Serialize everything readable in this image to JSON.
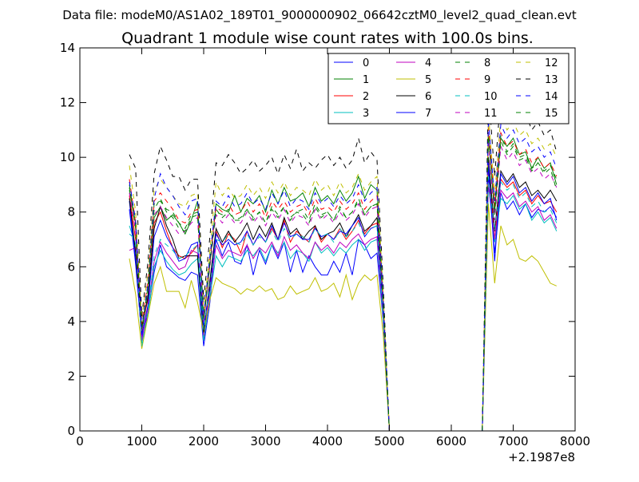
{
  "suptitle": "Data file: modeM0/AS1A02_189T01_9000000902_06642cztM0_level2_quad_clean.evt",
  "chart_data": {
    "type": "line",
    "title": "Quadrant 1 module wise count rates with 100.0s bins.",
    "xlabel": "",
    "ylabel": "",
    "x_offset_label": "+2.1987e8",
    "xlim": [
      0,
      8000
    ],
    "ylim": [
      0,
      14
    ],
    "xticks": [
      "0",
      "1000",
      "2000",
      "3000",
      "4000",
      "5000",
      "6000",
      "7000",
      "8000"
    ],
    "yticks": [
      "0",
      "2",
      "4",
      "6",
      "8",
      "10",
      "12",
      "14"
    ],
    "legend_position": "top-right",
    "x": [
      800,
      900,
      1000,
      1100,
      1200,
      1300,
      1400,
      1500,
      1600,
      1700,
      1800,
      1900,
      2000,
      2100,
      2200,
      2300,
      2400,
      2500,
      2600,
      2700,
      2800,
      2900,
      3000,
      3100,
      3200,
      3300,
      3400,
      3500,
      3600,
      3700,
      3800,
      3900,
      4000,
      4100,
      4200,
      4300,
      4400,
      4500,
      4600,
      4700,
      4800,
      4900,
      5000,
      5100,
      5200,
      5300,
      5400,
      5500,
      5600,
      5700,
      5800,
      5900,
      6000,
      6100,
      6200,
      6300,
      6400,
      6500,
      6600,
      6700,
      6800,
      6900,
      7000,
      7100,
      7200,
      7300,
      7400,
      7500,
      7600,
      7700
    ],
    "series": [
      {
        "name": "0",
        "color": "#0000ff",
        "dash": "solid",
        "values": [
          8.4,
          6.2,
          3.4,
          4.3,
          5.8,
          6.8,
          6.0,
          5.8,
          5.6,
          5.5,
          5.8,
          5.7,
          3.1,
          4.7,
          7.0,
          6.4,
          6.9,
          6.2,
          6.1,
          6.8,
          5.7,
          6.6,
          6.1,
          6.8,
          6.3,
          6.9,
          5.8,
          6.6,
          5.8,
          6.4,
          6.0,
          5.7,
          5.7,
          6.2,
          5.8,
          6.5,
          5.7,
          7.0,
          6.8,
          6.3,
          6.5,
          4.0,
          0,
          0,
          0,
          0,
          0,
          0,
          0,
          0,
          0,
          0,
          0,
          0,
          0,
          0,
          0,
          0,
          9.4,
          6.5,
          8.7,
          8.1,
          8.4,
          7.9,
          8.3,
          7.8,
          8.1,
          8.0,
          8.2,
          7.8
        ]
      },
      {
        "name": "1",
        "color": "#008000",
        "dash": "solid",
        "values": [
          8.8,
          7.6,
          3.6,
          5.0,
          7.8,
          8.2,
          7.7,
          7.9,
          7.6,
          7.2,
          7.7,
          8.4,
          4.0,
          6.1,
          8.3,
          8.1,
          8.0,
          8.6,
          8.0,
          8.5,
          8.3,
          8.6,
          8.0,
          8.8,
          8.3,
          8.9,
          8.4,
          8.5,
          8.7,
          8.2,
          8.9,
          8.4,
          8.6,
          8.3,
          8.8,
          8.4,
          8.7,
          9.3,
          8.5,
          9.0,
          8.8,
          4.6,
          0,
          0,
          0,
          0,
          0,
          0,
          0,
          0,
          0,
          0,
          0,
          0,
          0,
          0,
          0,
          0,
          10.8,
          8.0,
          10.7,
          10.4,
          10.7,
          10.1,
          10.2,
          9.6,
          10.0,
          9.6,
          9.8,
          9.0
        ]
      },
      {
        "name": "2",
        "color": "#ff0000",
        "dash": "solid",
        "values": [
          8.6,
          7.0,
          3.8,
          4.8,
          7.6,
          8.0,
          7.3,
          6.7,
          6.4,
          6.3,
          6.5,
          6.8,
          3.4,
          5.3,
          7.3,
          6.7,
          7.2,
          7.0,
          6.5,
          7.3,
          6.8,
          7.2,
          6.9,
          7.4,
          7.0,
          7.7,
          6.9,
          7.3,
          7.1,
          6.9,
          7.5,
          6.9,
          7.2,
          7.0,
          7.4,
          7.0,
          7.3,
          7.7,
          7.2,
          7.5,
          7.6,
          4.2,
          0,
          0,
          0,
          0,
          0,
          0,
          0,
          0,
          0,
          0,
          0,
          0,
          0,
          0,
          0,
          0,
          9.7,
          7.0,
          9.2,
          8.9,
          9.1,
          8.6,
          8.8,
          8.3,
          8.6,
          8.3,
          8.4,
          8.0
        ]
      },
      {
        "name": "3",
        "color": "#00bfbf",
        "dash": "solid",
        "values": [
          7.5,
          6.8,
          3.2,
          4.2,
          6.0,
          6.6,
          6.2,
          5.9,
          5.7,
          5.8,
          6.1,
          6.3,
          3.3,
          4.9,
          6.4,
          6.0,
          6.4,
          6.3,
          6.2,
          6.6,
          6.4,
          6.7,
          6.2,
          6.8,
          6.5,
          6.9,
          6.3,
          6.6,
          6.5,
          6.2,
          6.9,
          6.5,
          6.7,
          6.4,
          6.7,
          6.5,
          6.8,
          7.0,
          6.6,
          6.9,
          7.0,
          4.0,
          0,
          0,
          0,
          0,
          0,
          0,
          0,
          0,
          0,
          0,
          0,
          0,
          0,
          0,
          0,
          0,
          9.0,
          6.9,
          8.5,
          8.3,
          8.6,
          8.1,
          8.3,
          7.7,
          8.0,
          7.6,
          7.8,
          7.3
        ]
      },
      {
        "name": "4",
        "color": "#bf00bf",
        "dash": "solid",
        "values": [
          6.6,
          6.7,
          3.3,
          4.5,
          6.2,
          6.9,
          6.5,
          6.2,
          5.9,
          6.0,
          6.6,
          6.5,
          3.5,
          5.1,
          6.8,
          6.3,
          6.6,
          6.5,
          6.4,
          6.8,
          6.3,
          6.7,
          6.5,
          6.9,
          6.4,
          7.1,
          6.6,
          6.8,
          6.5,
          6.3,
          6.9,
          6.6,
          6.8,
          6.5,
          6.9,
          6.7,
          7.0,
          7.2,
          6.8,
          7.0,
          7.1,
          4.1,
          0,
          0,
          0,
          0,
          0,
          0,
          0,
          0,
          0,
          0,
          0,
          0,
          0,
          0,
          0,
          0,
          9.1,
          7.0,
          8.8,
          8.5,
          8.7,
          8.2,
          8.4,
          8.0,
          8.2,
          7.7,
          7.9,
          7.4
        ]
      },
      {
        "name": "5",
        "color": "#bfbf00",
        "dash": "solid",
        "values": [
          6.3,
          5.0,
          3.0,
          4.2,
          5.4,
          6.0,
          5.1,
          5.1,
          5.1,
          4.5,
          5.5,
          4.7,
          3.6,
          4.8,
          5.6,
          5.4,
          5.3,
          5.2,
          5.0,
          5.2,
          5.1,
          5.3,
          5.1,
          5.2,
          4.8,
          4.9,
          5.3,
          5.0,
          5.1,
          5.2,
          5.6,
          5.1,
          5.2,
          5.4,
          4.9,
          5.7,
          4.8,
          5.4,
          5.7,
          5.5,
          5.7,
          3.5,
          0,
          0,
          0,
          0,
          0,
          0,
          0,
          0,
          0,
          0,
          0,
          0,
          0,
          0,
          0,
          0,
          8.3,
          5.4,
          7.5,
          6.8,
          7.0,
          6.3,
          6.2,
          6.4,
          6.2,
          5.8,
          5.4,
          5.3
        ]
      },
      {
        "name": "6",
        "color": "#000000",
        "dash": "solid",
        "values": [
          8.5,
          6.5,
          3.8,
          4.9,
          7.4,
          8.2,
          7.5,
          7.0,
          6.3,
          6.4,
          6.4,
          6.4,
          3.6,
          5.5,
          7.4,
          6.9,
          7.3,
          6.9,
          7.2,
          7.6,
          7.0,
          7.5,
          7.1,
          7.6,
          7.0,
          7.8,
          7.2,
          7.4,
          7.0,
          7.3,
          7.5,
          7.0,
          7.2,
          7.3,
          7.6,
          7.1,
          7.5,
          7.9,
          7.3,
          7.5,
          7.8,
          4.4,
          0,
          0,
          0,
          0,
          0,
          0,
          0,
          0,
          0,
          0,
          0,
          0,
          0,
          0,
          0,
          0,
          10.0,
          7.3,
          9.5,
          9.1,
          9.4,
          8.9,
          9.1,
          8.6,
          8.8,
          8.5,
          8.8,
          8.4
        ]
      },
      {
        "name": "7",
        "color": "#0000ff",
        "dash": "solid",
        "values": [
          8.1,
          6.1,
          3.5,
          4.6,
          7.1,
          7.7,
          7.1,
          6.7,
          6.2,
          6.3,
          6.8,
          6.9,
          3.8,
          5.2,
          7.2,
          6.8,
          7.0,
          6.8,
          6.9,
          7.3,
          6.8,
          7.2,
          6.9,
          7.5,
          7.0,
          7.6,
          7.1,
          7.2,
          7.0,
          7.0,
          7.4,
          7.1,
          7.2,
          7.0,
          7.3,
          7.2,
          7.5,
          7.8,
          7.1,
          7.4,
          7.5,
          4.3,
          0,
          0,
          0,
          0,
          0,
          0,
          0,
          0,
          0,
          0,
          0,
          0,
          0,
          0,
          0,
          0,
          9.8,
          6.2,
          9.4,
          9.0,
          9.3,
          8.7,
          8.9,
          8.4,
          8.7,
          8.3,
          8.5,
          7.7
        ]
      },
      {
        "name": "8",
        "color": "#008000",
        "dash": "dashed",
        "values": [
          9.0,
          7.5,
          3.7,
          5.3,
          8.3,
          8.4,
          8.1,
          8.0,
          7.6,
          7.4,
          7.9,
          8.0,
          4.1,
          6.2,
          8.0,
          7.9,
          8.1,
          7.7,
          7.8,
          8.1,
          7.8,
          8.0,
          7.6,
          8.2,
          7.9,
          8.2,
          7.8,
          8.0,
          8.1,
          7.7,
          8.3,
          7.9,
          8.0,
          7.7,
          8.2,
          7.8,
          8.0,
          8.4,
          7.9,
          8.2,
          8.3,
          4.6,
          0,
          0,
          0,
          0,
          0,
          0,
          0,
          0,
          0,
          0,
          0,
          0,
          0,
          0,
          0,
          0,
          10.9,
          8.1,
          10.8,
          10.2,
          10.5,
          10.0,
          10.1,
          9.6,
          9.8,
          9.5,
          9.7,
          9.2
        ]
      },
      {
        "name": "9",
        "color": "#ff0000",
        "dash": "dashed",
        "values": [
          9.2,
          7.6,
          3.9,
          5.5,
          8.4,
          8.7,
          8.4,
          8.1,
          7.7,
          7.6,
          8.0,
          8.1,
          4.1,
          6.3,
          8.2,
          8.0,
          8.3,
          7.9,
          8.0,
          8.4,
          8.0,
          8.3,
          7.8,
          8.4,
          8.1,
          8.4,
          8.0,
          8.2,
          8.3,
          7.9,
          8.5,
          8.1,
          8.2,
          8.0,
          8.4,
          8.1,
          8.3,
          8.7,
          8.1,
          8.4,
          8.6,
          4.7,
          0,
          0,
          0,
          0,
          0,
          0,
          0,
          0,
          0,
          0,
          0,
          0,
          0,
          0,
          0,
          0,
          11.1,
          8.2,
          10.9,
          10.4,
          10.6,
          10.1,
          10.3,
          9.8,
          10.0,
          9.6,
          9.8,
          9.3
        ]
      },
      {
        "name": "10",
        "color": "#00bfbf",
        "dash": "dashed",
        "values": [
          7.2,
          7.0,
          3.1,
          4.4,
          6.4,
          7.0,
          6.8,
          6.6,
          6.3,
          6.4,
          6.6,
          6.8,
          3.7,
          5.3,
          7.0,
          6.9,
          7.2,
          6.9,
          6.8,
          7.2,
          6.8,
          7.1,
          6.9,
          7.3,
          6.9,
          7.4,
          7.0,
          7.2,
          7.1,
          6.9,
          7.4,
          7.1,
          7.2,
          6.9,
          7.4,
          7.1,
          7.3,
          7.6,
          7.1,
          7.4,
          7.5,
          4.1,
          0,
          0,
          0,
          0,
          0,
          0,
          0,
          0,
          0,
          0,
          0,
          0,
          0,
          0,
          0,
          0,
          9.3,
          7.3,
          9.1,
          8.8,
          9.0,
          8.5,
          8.7,
          8.2,
          8.4,
          8.0,
          8.1,
          7.6
        ]
      },
      {
        "name": "11",
        "color": "#bf00bf",
        "dash": "dashed",
        "values": [
          8.7,
          7.3,
          3.6,
          5.1,
          7.9,
          8.2,
          7.8,
          7.5,
          7.2,
          7.3,
          7.6,
          7.8,
          4.0,
          6.0,
          7.9,
          7.6,
          7.9,
          7.6,
          7.6,
          8.0,
          7.6,
          7.9,
          7.5,
          8.0,
          7.7,
          8.1,
          7.6,
          7.9,
          7.8,
          7.5,
          8.1,
          7.7,
          7.9,
          7.6,
          8.0,
          7.7,
          7.9,
          8.3,
          7.8,
          8.1,
          8.2,
          4.5,
          0,
          0,
          0,
          0,
          0,
          0,
          0,
          0,
          0,
          0,
          0,
          0,
          0,
          0,
          0,
          0,
          10.6,
          7.7,
          10.4,
          9.9,
          10.2,
          9.7,
          9.9,
          9.4,
          9.6,
          9.2,
          9.4,
          8.9
        ]
      },
      {
        "name": "12",
        "color": "#bfbf00",
        "dash": "dashed",
        "values": [
          9.7,
          8.0,
          4.1,
          5.8,
          8.8,
          9.2,
          8.9,
          8.6,
          8.3,
          8.2,
          8.6,
          8.7,
          4.4,
          6.6,
          9.1,
          8.6,
          8.9,
          8.5,
          8.6,
          9.0,
          8.6,
          8.9,
          8.5,
          9.1,
          8.7,
          9.1,
          8.6,
          8.9,
          8.8,
          8.6,
          9.2,
          8.8,
          9.0,
          8.6,
          9.1,
          8.7,
          8.9,
          9.4,
          8.8,
          9.1,
          9.3,
          5.0,
          0,
          0,
          0,
          0,
          0,
          0,
          0,
          0,
          0,
          0,
          0,
          0,
          0,
          0,
          0,
          0,
          11.6,
          8.6,
          11.5,
          11.0,
          11.3,
          10.8,
          11.0,
          10.5,
          10.7,
          10.3,
          10.5,
          10.0
        ]
      },
      {
        "name": "13",
        "color": "#000000",
        "dash": "dashed",
        "values": [
          10.1,
          9.6,
          4.2,
          6.2,
          9.4,
          10.4,
          9.9,
          9.3,
          9.3,
          8.8,
          9.2,
          9.2,
          4.8,
          7.1,
          9.8,
          9.7,
          10.1,
          9.8,
          9.4,
          9.6,
          9.9,
          9.5,
          9.7,
          10.0,
          9.4,
          10.1,
          9.6,
          10.3,
          9.5,
          9.8,
          9.6,
          9.9,
          10.1,
          9.7,
          10.0,
          9.6,
          9.9,
          10.7,
          9.8,
          10.2,
          9.9,
          5.3,
          0,
          0,
          0,
          0,
          0,
          0,
          0,
          0,
          0,
          0,
          0,
          0,
          0,
          0,
          0,
          0,
          12.5,
          9.3,
          12.3,
          11.7,
          12.0,
          11.4,
          11.6,
          11.0,
          11.3,
          10.8,
          11.0,
          10.2
        ]
      },
      {
        "name": "14",
        "color": "#0000ff",
        "dash": "dashed",
        "values": [
          9.1,
          7.7,
          3.8,
          5.4,
          8.5,
          9.4,
          8.9,
          8.6,
          8.2,
          7.9,
          8.4,
          8.5,
          4.2,
          6.4,
          8.4,
          8.2,
          8.6,
          8.2,
          8.3,
          8.7,
          8.3,
          8.5,
          8.1,
          8.7,
          8.3,
          8.8,
          8.2,
          8.5,
          8.4,
          8.1,
          8.7,
          8.3,
          8.5,
          8.2,
          8.6,
          8.3,
          8.5,
          9.0,
          8.4,
          8.7,
          8.9,
          4.8,
          0,
          0,
          0,
          0,
          0,
          0,
          0,
          0,
          0,
          0,
          0,
          0,
          0,
          0,
          0,
          0,
          11.4,
          8.4,
          11.2,
          10.7,
          11.0,
          10.5,
          10.7,
          10.2,
          10.4,
          10.0,
          10.2,
          9.6
        ]
      },
      {
        "name": "15",
        "color": "#008000",
        "dash": "dashed",
        "values": [
          8.9,
          7.4,
          3.7,
          5.2,
          8.1,
          8.5,
          8.0,
          7.8,
          7.4,
          7.3,
          7.8,
          7.9,
          4.1,
          6.1,
          8.1,
          7.8,
          8.0,
          7.7,
          7.7,
          8.1,
          7.7,
          8.0,
          7.6,
          8.1,
          7.8,
          8.2,
          7.7,
          8.0,
          7.9,
          7.6,
          8.2,
          7.8,
          8.0,
          7.7,
          8.1,
          7.8,
          8.0,
          8.5,
          7.9,
          8.2,
          8.3,
          4.6,
          0,
          0,
          0,
          0,
          0,
          0,
          0,
          0,
          0,
          0,
          0,
          0,
          0,
          0,
          0,
          0,
          10.8,
          7.9,
          10.6,
          10.1,
          10.4,
          9.9,
          10.0,
          9.5,
          9.8,
          9.4,
          9.6,
          8.8
        ]
      }
    ]
  }
}
